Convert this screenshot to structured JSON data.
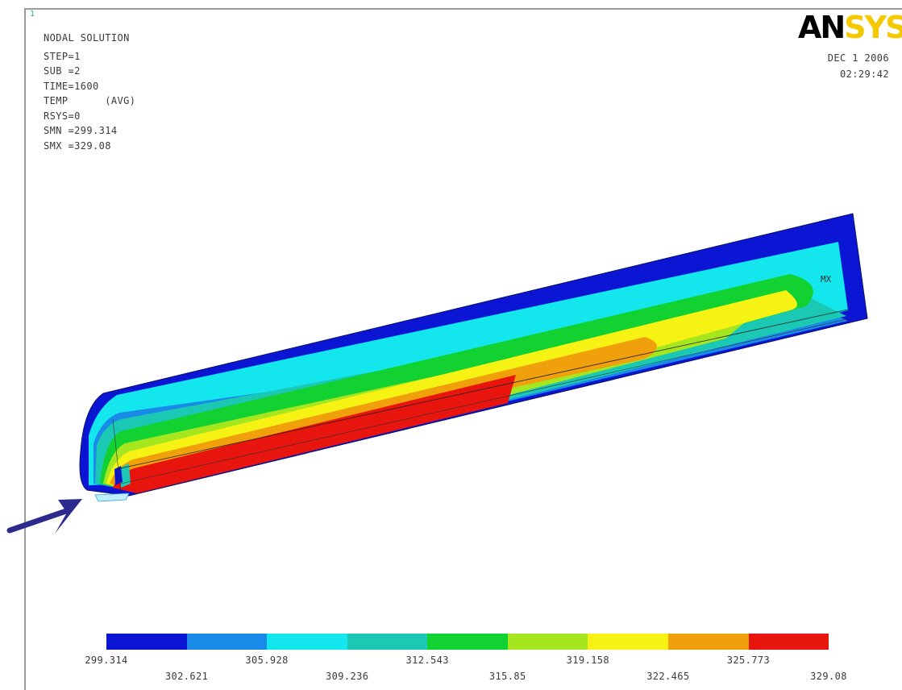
{
  "header": {
    "title": "NODAL SOLUTION",
    "lines": [
      "STEP=1",
      "SUB =2",
      "TIME=1600",
      "TEMP      (AVG)",
      "RSYS=0",
      "SMN =299.314",
      "SMX =329.08"
    ]
  },
  "logo": {
    "part1": "AN",
    "part2": "SYS"
  },
  "date": {
    "date": "DEC  1 2006",
    "time": "02:29:42"
  },
  "model": {
    "max_marker_label": "MX"
  },
  "colors": {
    "band_colors": [
      "#0a16d4",
      "#1a8ae8",
      "#14e6ee",
      "#1ac8b4",
      "#12d232",
      "#a6e61e",
      "#f5f214",
      "#f0a00a",
      "#e8140e"
    ],
    "arrow": "#2c2a8c"
  },
  "legend": {
    "levels": [
      "299.314",
      "302.621",
      "305.928",
      "309.236",
      "312.543",
      "315.85",
      "319.158",
      "322.465",
      "325.773",
      "329.08"
    ]
  }
}
